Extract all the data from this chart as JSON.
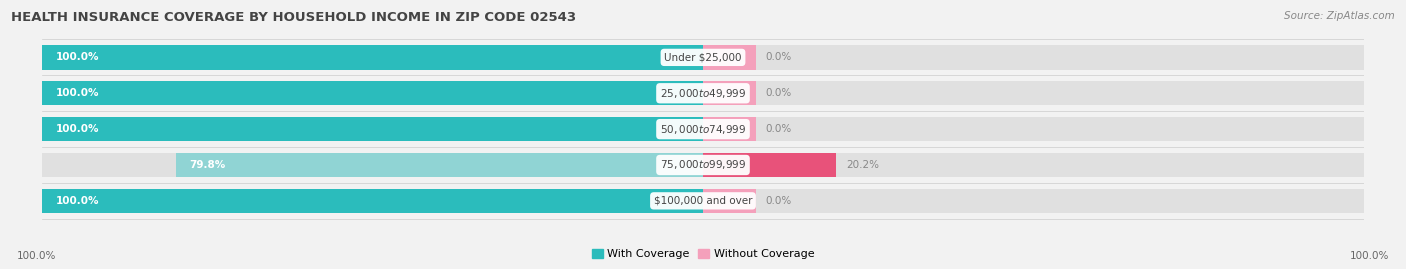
{
  "title": "HEALTH INSURANCE COVERAGE BY HOUSEHOLD INCOME IN ZIP CODE 02543",
  "source": "Source: ZipAtlas.com",
  "categories": [
    "Under $25,000",
    "$25,000 to $49,999",
    "$50,000 to $74,999",
    "$75,000 to $99,999",
    "$100,000 and over"
  ],
  "with_coverage": [
    100.0,
    100.0,
    100.0,
    79.8,
    100.0
  ],
  "without_coverage": [
    0.0,
    0.0,
    0.0,
    20.2,
    0.0
  ],
  "color_with_full": "#2bbcbc",
  "color_with_light": "#90d4d4",
  "color_without_full": "#e8527a",
  "color_without_light": "#f4a0bb",
  "bg_color": "#f2f2f2",
  "bar_bg_color": "#e0e0e0",
  "bar_height": 0.68,
  "figsize": [
    14.06,
    2.69
  ],
  "dpi": 100,
  "xlim_left": -100,
  "xlim_right": 100,
  "without_display_min": 8,
  "legend_color_with": "#2bbcbc",
  "legend_color_without": "#f4a0bb"
}
